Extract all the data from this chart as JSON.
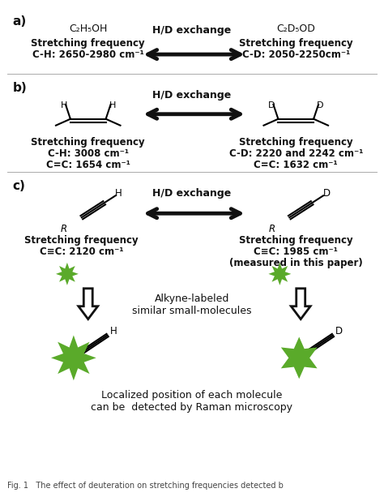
{
  "bg_color": "#ffffff",
  "fig_width": 4.74,
  "fig_height": 6.13,
  "dpi": 100,
  "green": "#5aaa2a",
  "green2": "#5aaa2a",
  "black": "#111111",
  "gray_line": "#cccccc",
  "section_a_label": "a)",
  "section_b_label": "b)",
  "section_c_label": "c)",
  "hd_exchange": "H/D exchange",
  "a_left_title": "C₂H₅OH",
  "a_right_title": "C₂D₅OD",
  "a_left_text1": "Stretching frequency",
  "a_left_text2": "C-H: 2650-2980 cm⁻¹",
  "a_right_text1": "Stretching frequency",
  "a_right_text2": "C-D: 2050-2250cm⁻¹",
  "b_left_text1": "Stretching frequency",
  "b_left_text2": "C-H: 3008 cm⁻¹",
  "b_left_text3": "C=C: 1654 cm⁻¹",
  "b_right_text1": "Stretching frequency",
  "b_right_text2": "C-D: 2220 and 2242 cm⁻¹",
  "b_right_text3": "C=C: 1632 cm⁻¹",
  "c_left_text1": "Stretching frequency",
  "c_left_text2": "C≡C: 2120 cm⁻¹",
  "c_right_text1": "Stretching frequency",
  "c_right_text2": "C≡C: 1985 cm⁻¹",
  "c_right_text3": "(measured in this paper)",
  "alkyne_label1": "Alkyne-labeled",
  "alkyne_label2": "similar small-molecules",
  "bottom_text1": "Localized position of each molecule",
  "bottom_text2": "can be  detected by Raman microscopy",
  "caption": "Fig. 1   The effect of deuteration on stretching frequencies detected b"
}
